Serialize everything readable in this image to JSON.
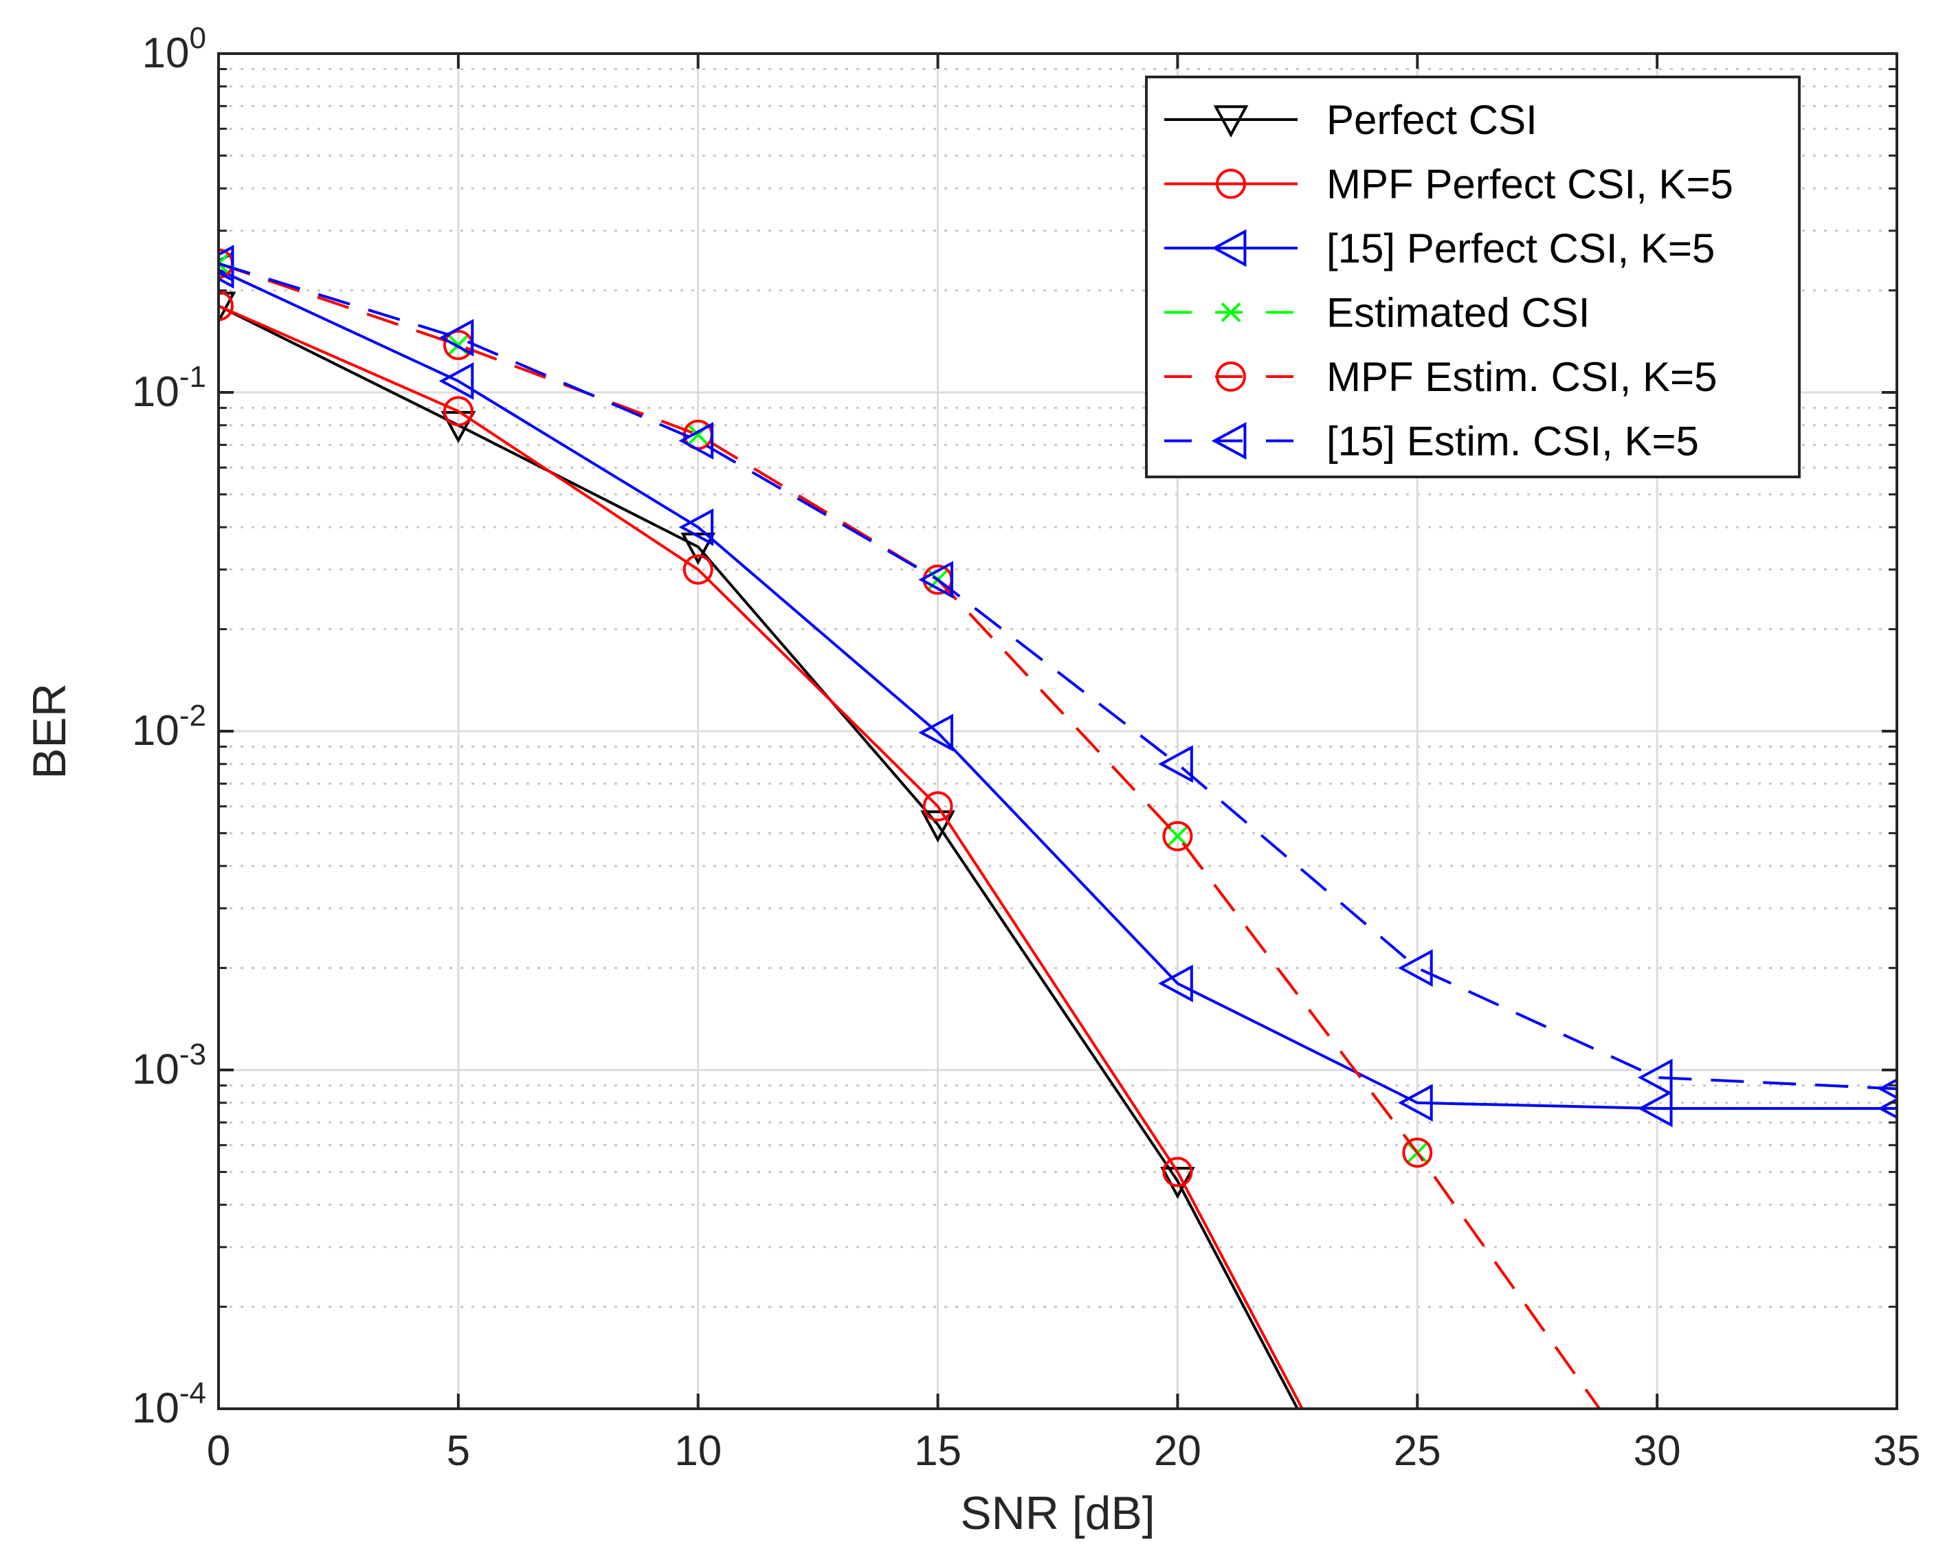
{
  "chart_data": {
    "type": "line",
    "xlabel": "SNR [dB]",
    "ylabel": "BER",
    "xlim": [
      0,
      35
    ],
    "ylim": [
      0.0001,
      1
    ],
    "yscale": "log",
    "grid": true,
    "x_ticks": [
      "0",
      "5",
      "10",
      "15",
      "20",
      "25",
      "30",
      "35"
    ],
    "x_tick_values": [
      0,
      5,
      10,
      15,
      20,
      25,
      30,
      35
    ],
    "y_ticks": [
      {
        "value": 1,
        "base": "10",
        "exp": "0"
      },
      {
        "value": 0.1,
        "base": "10",
        "exp": "-1"
      },
      {
        "value": 0.01,
        "base": "10",
        "exp": "-2"
      },
      {
        "value": 0.001,
        "base": "10",
        "exp": "-3"
      },
      {
        "value": 0.0001,
        "base": "10",
        "exp": "-4"
      }
    ],
    "legend_position": "top-right",
    "series": [
      {
        "name": "Perfect CSI",
        "color": "#000000",
        "dash": "solid",
        "marker": "triangle-down",
        "x": [
          0,
          5,
          10,
          15,
          20,
          22.5
        ],
        "y": [
          0.18,
          0.08,
          0.035,
          0.0053,
          0.00047,
          0.0001
        ]
      },
      {
        "name": "MPF Perfect CSI, K=5",
        "color": "#ff0000",
        "dash": "solid",
        "marker": "circle",
        "x": [
          0,
          5,
          10,
          15,
          20,
          22.6
        ],
        "y": [
          0.18,
          0.088,
          0.03,
          0.006,
          0.0005,
          0.0001
        ]
      },
      {
        "name": "[15] Perfect CSI, K=5",
        "color": "#0000ff",
        "dash": "solid",
        "marker": "triangle-left",
        "x": [
          0,
          5,
          10,
          15,
          20,
          25,
          30,
          35
        ],
        "y": [
          0.23,
          0.108,
          0.04,
          0.0099,
          0.0018,
          0.0008,
          0.00077,
          0.00077
        ]
      },
      {
        "name": "Estimated CSI",
        "color": "#00ff00",
        "dash": "dashed",
        "marker": "x",
        "x": [
          0,
          5,
          10,
          15,
          20,
          25,
          28.8
        ],
        "y": [
          0.24,
          0.138,
          0.075,
          0.028,
          0.0049,
          0.00057,
          0.0001
        ]
      },
      {
        "name": "MPF Estim. CSI, K=5",
        "color": "#ff0000",
        "dash": "dashed",
        "marker": "circle",
        "x": [
          0,
          5,
          10,
          15,
          20,
          25,
          28.8
        ],
        "y": [
          0.24,
          0.138,
          0.075,
          0.028,
          0.0049,
          0.00057,
          0.0001
        ]
      },
      {
        "name": "[15] Estim. CSI, K=5",
        "color": "#0000ff",
        "dash": "dashed",
        "marker": "triangle-left",
        "x": [
          0,
          5,
          10,
          15,
          20,
          25,
          30,
          35
        ],
        "y": [
          0.24,
          0.145,
          0.072,
          0.028,
          0.008,
          0.002,
          0.00095,
          0.00088
        ]
      }
    ]
  }
}
